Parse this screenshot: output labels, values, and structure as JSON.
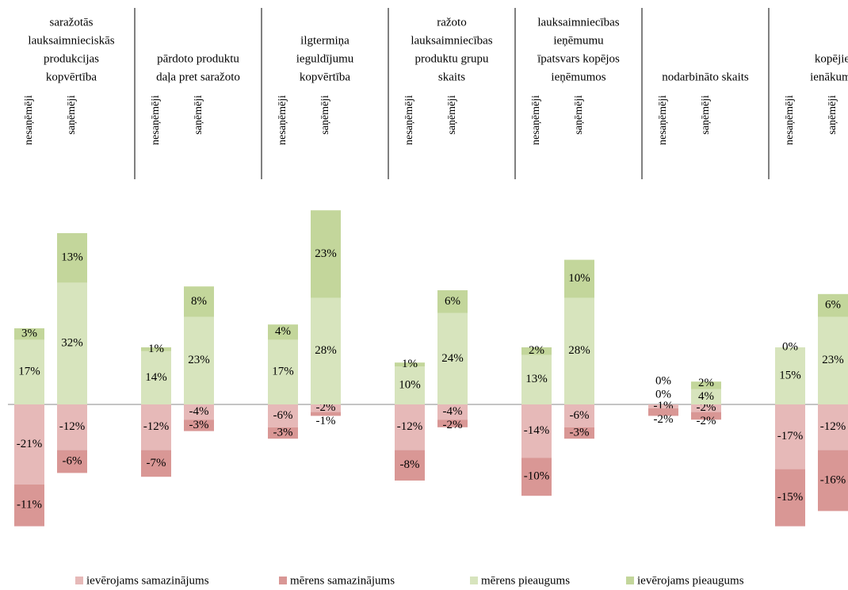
{
  "chart_data": {
    "type": "stacked_bar",
    "groups": [
      [
        "saražotās",
        "lauksaimnieciskās",
        "produkcijas",
        "kopvērtība"
      ],
      [
        "pārdoto produktu",
        "daļa pret saražoto"
      ],
      [
        "ilgtermiņa",
        "ieguldījumu",
        "kopvērtība"
      ],
      [
        "ražoto",
        "lauksaimniecības",
        "produktu grupu",
        "skaits"
      ],
      [
        "lauksaimniecības",
        "ieņēmumu",
        "īpatsvars kopējos",
        "ieņēmumos"
      ],
      [
        "nodarbināto skaits"
      ],
      [
        "kopējie",
        "ienākumi"
      ]
    ],
    "categories": [
      "nesaņēmēji",
      "saņēmēji",
      "nesaņēmēji",
      "saņēmēji",
      "nesaņēmēji",
      "saņēmēji",
      "nesaņēmēji",
      "saņēmēji",
      "nesaņēmēji",
      "saņēmēji",
      "nesaņēmēji",
      "saņēmēji",
      "nesaņēmēji",
      "saņēmēji"
    ],
    "series": [
      {
        "name": "ievērojams samazinājums",
        "color": "#e6b9b8",
        "values": [
          -21,
          -12,
          -12,
          -4,
          -6,
          -2,
          -12,
          -4,
          -14,
          -6,
          -1,
          -2,
          -17,
          -12
        ],
        "value_labels": [
          "-21%",
          "-12%",
          "-12%",
          "-4%",
          "-6%",
          "-2%",
          "-12%",
          "-4%",
          "-14%",
          "-6%",
          "-1%",
          "-2%",
          "-17%",
          "-12%"
        ]
      },
      {
        "name": "mērens samazinājums",
        "color": "#d99795",
        "values": [
          -11,
          -6,
          -7,
          -3,
          -3,
          -1,
          -8,
          -2,
          -10,
          -3,
          -2,
          -2,
          -15,
          -16
        ],
        "value_labels": [
          "-11%",
          "-6%",
          "-7%",
          "-3%",
          "-3%",
          "-1%",
          "-8%",
          "-2%",
          "-10%",
          "-3%",
          "-2%",
          "-2%",
          "-15%",
          "-16%"
        ]
      },
      {
        "name": "mērens pieaugums",
        "color": "#d7e4bd",
        "values": [
          17,
          32,
          14,
          23,
          17,
          28,
          10,
          24,
          13,
          28,
          0,
          4,
          15,
          23
        ],
        "value_labels": [
          "17%",
          "32%",
          "14%",
          "23%",
          "17%",
          "28%",
          "10%",
          "24%",
          "13%",
          "28%",
          "0%",
          "4%",
          "15%",
          "23%"
        ]
      },
      {
        "name": "ievērojams pieaugums",
        "color": "#c3d69b",
        "values": [
          3,
          13,
          1,
          8,
          4,
          23,
          1,
          6,
          2,
          10,
          0,
          2,
          0,
          6
        ],
        "value_labels": [
          "3%",
          "13%",
          "1%",
          "8%",
          "4%",
          "23%",
          "1%",
          "6%",
          "2%",
          "10%",
          "0%",
          "2%",
          "0%",
          "6%"
        ]
      }
    ],
    "ylim": [
      -40,
      55
    ]
  }
}
